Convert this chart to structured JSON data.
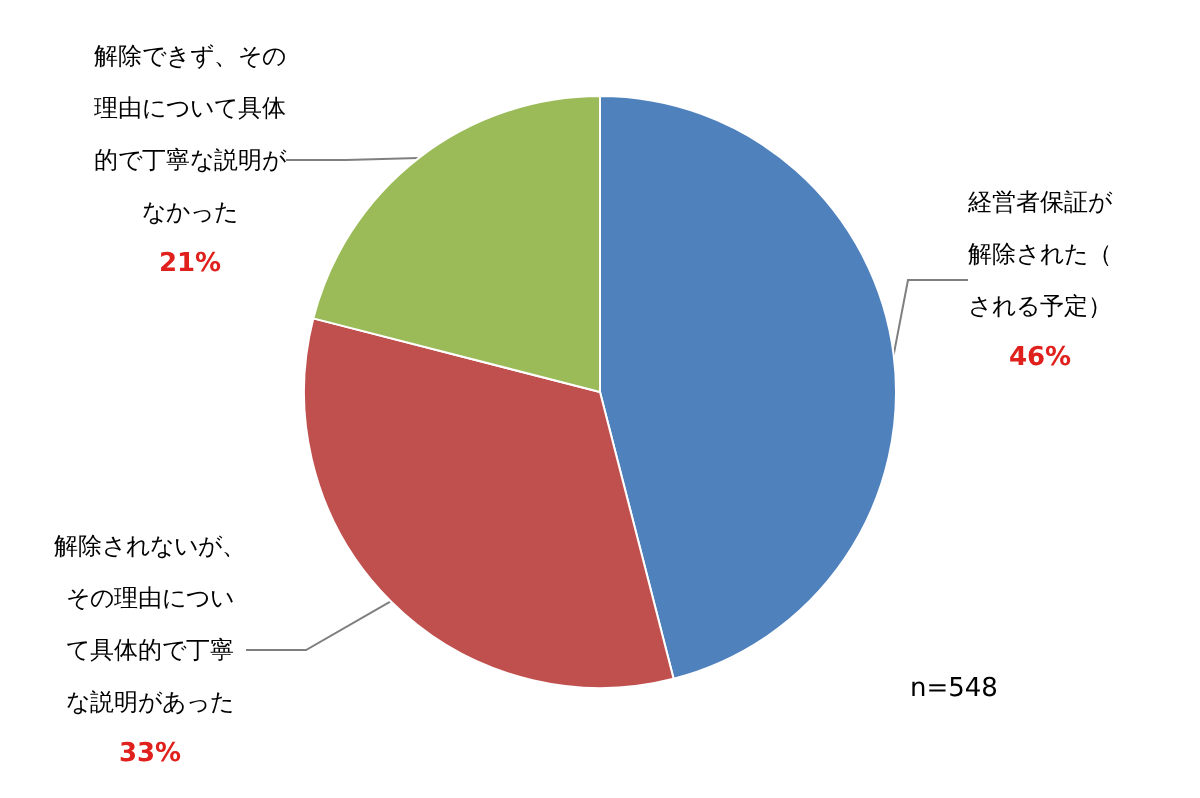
{
  "chart_data": {
    "type": "pie",
    "categories": [
      "経営者保証が解除された（される予定）",
      "解除されないが、その理由について具体的で丁寧な説明があった",
      "解除できず、その理由について具体的で丁寧な説明がなかった"
    ],
    "values": [
      46,
      33,
      21
    ],
    "colors": [
      "#4f81bd",
      "#c0504d",
      "#9bbb59"
    ],
    "value_labels": [
      "46%",
      "33%",
      "21%"
    ],
    "annotations": [
      "n=548"
    ]
  }
}
